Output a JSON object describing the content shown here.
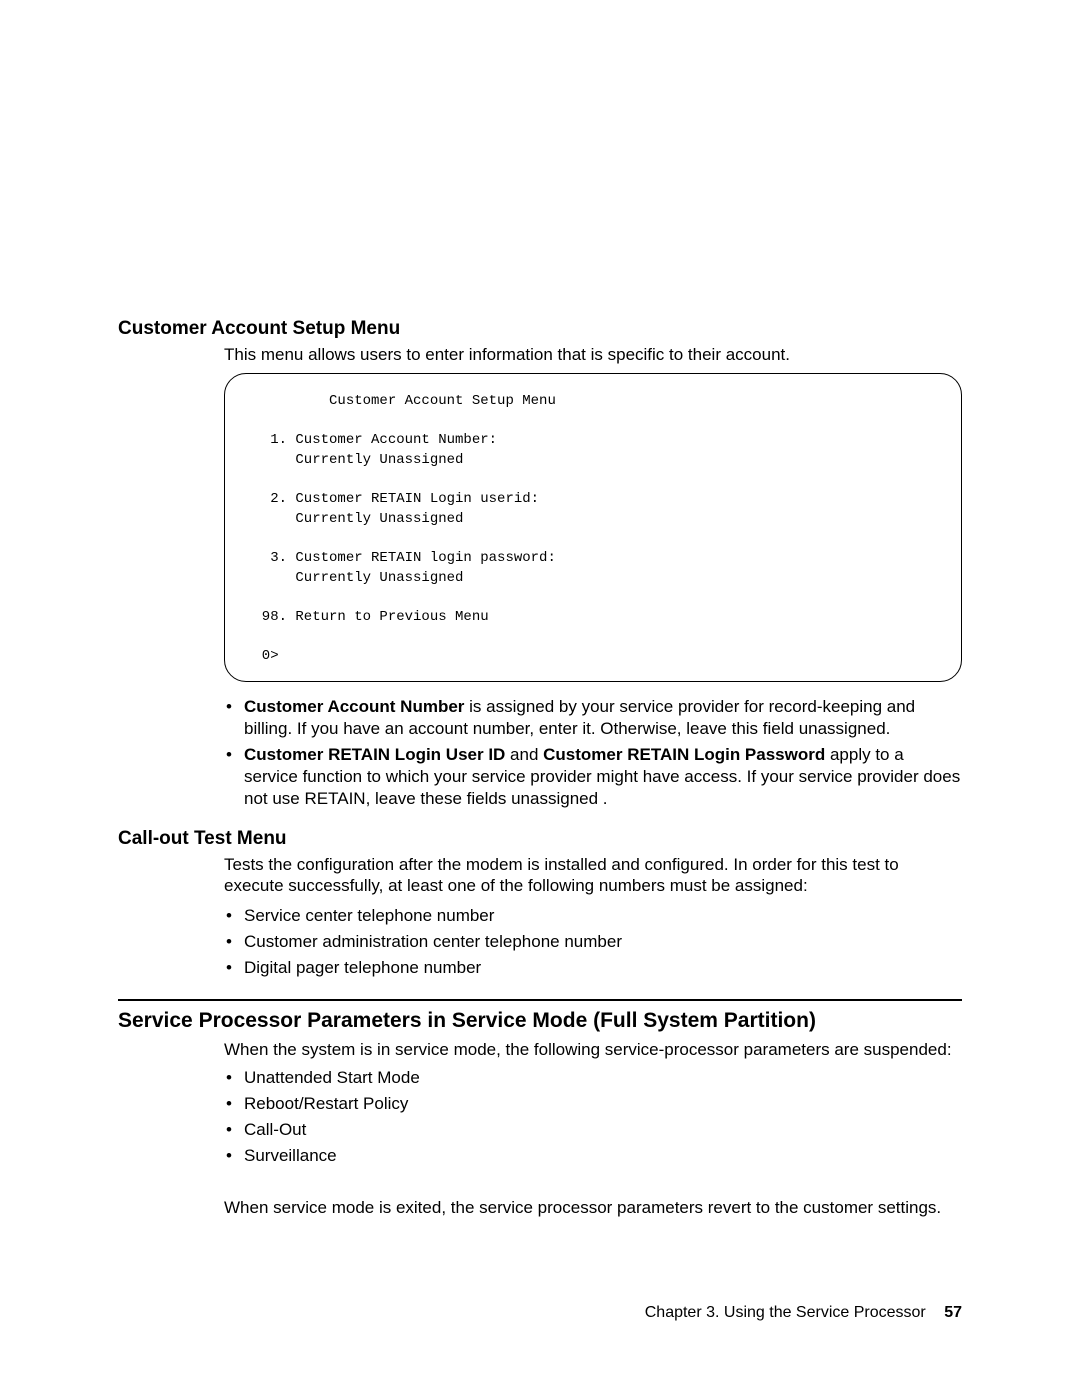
{
  "section1": {
    "heading": "Customer Account Setup Menu",
    "intro": "This menu allows users to enter information that is specific to their account.",
    "terminal": "          Customer Account Setup Menu\n\n   1. Customer Account Number:\n      Currently Unassigned\n\n   2. Customer RETAIN Login userid:\n      Currently Unassigned\n\n   3. Customer RETAIN login password:\n      Currently Unassigned\n\n  98. Return to Previous Menu\n\n  0>",
    "bullets": [
      {
        "bold1": "Customer Account Number",
        "text1": " is assigned by your service provider for record-keeping and billing. If you have an account number, enter it. Otherwise, leave this field unassigned."
      },
      {
        "bold1": "Customer RETAIN Login User ID",
        "mid": " and ",
        "bold2": "Customer RETAIN Login Password",
        "text1": " apply to a service function to which your service provider might have access. If your service provider does not use RETAIN, leave these fields unassigned ."
      }
    ]
  },
  "section2": {
    "heading": "Call-out Test Menu",
    "intro": "Tests the configuration after the modem is installed and configured. In order for this test to execute successfully, at least one of the following numbers must be assigned:",
    "bullets": [
      "Service center telephone number",
      "Customer administration center telephone number",
      "Digital pager telephone number"
    ]
  },
  "section3": {
    "heading": "Service Processor Parameters in Service Mode (Full System Partition)",
    "intro": "When the system is in service mode, the following service-processor parameters are suspended:",
    "bullets": [
      "Unattended Start Mode",
      "Reboot/Restart Policy",
      "Call-Out",
      "Surveillance"
    ],
    "outro": "When service mode is exited, the service processor parameters revert to the customer settings."
  },
  "footer": {
    "chapter": "Chapter 3. Using the Service Processor",
    "page": "57"
  }
}
